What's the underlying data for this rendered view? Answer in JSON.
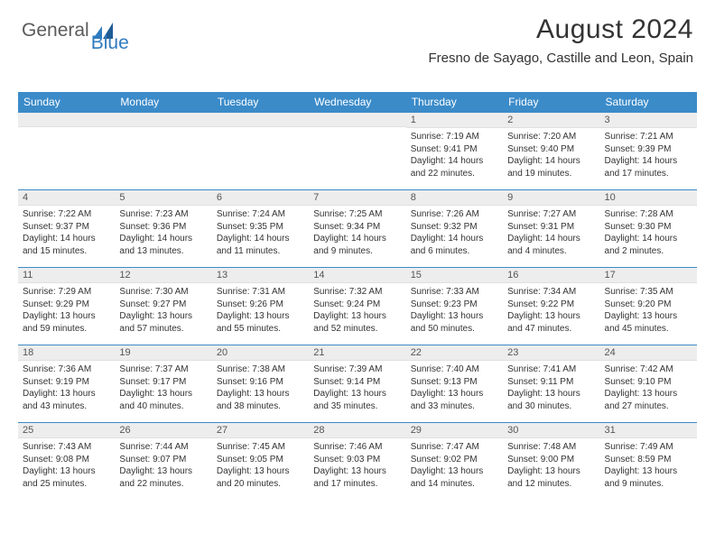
{
  "logo": {
    "text1": "General",
    "text2": "Blue"
  },
  "header": {
    "month": "August 2024",
    "location": "Fresno de Sayago, Castille and Leon, Spain"
  },
  "colors": {
    "header_bg": "#3b8bc9",
    "header_fg": "#ffffff",
    "daynum_bg": "#ededed",
    "border": "#3b8bc9"
  },
  "weekdays": [
    "Sunday",
    "Monday",
    "Tuesday",
    "Wednesday",
    "Thursday",
    "Friday",
    "Saturday"
  ],
  "weeks": [
    [
      null,
      null,
      null,
      null,
      {
        "n": "1",
        "sr": "7:19 AM",
        "ss": "9:41 PM",
        "dl": "14 hours and 22 minutes."
      },
      {
        "n": "2",
        "sr": "7:20 AM",
        "ss": "9:40 PM",
        "dl": "14 hours and 19 minutes."
      },
      {
        "n": "3",
        "sr": "7:21 AM",
        "ss": "9:39 PM",
        "dl": "14 hours and 17 minutes."
      }
    ],
    [
      {
        "n": "4",
        "sr": "7:22 AM",
        "ss": "9:37 PM",
        "dl": "14 hours and 15 minutes."
      },
      {
        "n": "5",
        "sr": "7:23 AM",
        "ss": "9:36 PM",
        "dl": "14 hours and 13 minutes."
      },
      {
        "n": "6",
        "sr": "7:24 AM",
        "ss": "9:35 PM",
        "dl": "14 hours and 11 minutes."
      },
      {
        "n": "7",
        "sr": "7:25 AM",
        "ss": "9:34 PM",
        "dl": "14 hours and 9 minutes."
      },
      {
        "n": "8",
        "sr": "7:26 AM",
        "ss": "9:32 PM",
        "dl": "14 hours and 6 minutes."
      },
      {
        "n": "9",
        "sr": "7:27 AM",
        "ss": "9:31 PM",
        "dl": "14 hours and 4 minutes."
      },
      {
        "n": "10",
        "sr": "7:28 AM",
        "ss": "9:30 PM",
        "dl": "14 hours and 2 minutes."
      }
    ],
    [
      {
        "n": "11",
        "sr": "7:29 AM",
        "ss": "9:29 PM",
        "dl": "13 hours and 59 minutes."
      },
      {
        "n": "12",
        "sr": "7:30 AM",
        "ss": "9:27 PM",
        "dl": "13 hours and 57 minutes."
      },
      {
        "n": "13",
        "sr": "7:31 AM",
        "ss": "9:26 PM",
        "dl": "13 hours and 55 minutes."
      },
      {
        "n": "14",
        "sr": "7:32 AM",
        "ss": "9:24 PM",
        "dl": "13 hours and 52 minutes."
      },
      {
        "n": "15",
        "sr": "7:33 AM",
        "ss": "9:23 PM",
        "dl": "13 hours and 50 minutes."
      },
      {
        "n": "16",
        "sr": "7:34 AM",
        "ss": "9:22 PM",
        "dl": "13 hours and 47 minutes."
      },
      {
        "n": "17",
        "sr": "7:35 AM",
        "ss": "9:20 PM",
        "dl": "13 hours and 45 minutes."
      }
    ],
    [
      {
        "n": "18",
        "sr": "7:36 AM",
        "ss": "9:19 PM",
        "dl": "13 hours and 43 minutes."
      },
      {
        "n": "19",
        "sr": "7:37 AM",
        "ss": "9:17 PM",
        "dl": "13 hours and 40 minutes."
      },
      {
        "n": "20",
        "sr": "7:38 AM",
        "ss": "9:16 PM",
        "dl": "13 hours and 38 minutes."
      },
      {
        "n": "21",
        "sr": "7:39 AM",
        "ss": "9:14 PM",
        "dl": "13 hours and 35 minutes."
      },
      {
        "n": "22",
        "sr": "7:40 AM",
        "ss": "9:13 PM",
        "dl": "13 hours and 33 minutes."
      },
      {
        "n": "23",
        "sr": "7:41 AM",
        "ss": "9:11 PM",
        "dl": "13 hours and 30 minutes."
      },
      {
        "n": "24",
        "sr": "7:42 AM",
        "ss": "9:10 PM",
        "dl": "13 hours and 27 minutes."
      }
    ],
    [
      {
        "n": "25",
        "sr": "7:43 AM",
        "ss": "9:08 PM",
        "dl": "13 hours and 25 minutes."
      },
      {
        "n": "26",
        "sr": "7:44 AM",
        "ss": "9:07 PM",
        "dl": "13 hours and 22 minutes."
      },
      {
        "n": "27",
        "sr": "7:45 AM",
        "ss": "9:05 PM",
        "dl": "13 hours and 20 minutes."
      },
      {
        "n": "28",
        "sr": "7:46 AM",
        "ss": "9:03 PM",
        "dl": "13 hours and 17 minutes."
      },
      {
        "n": "29",
        "sr": "7:47 AM",
        "ss": "9:02 PM",
        "dl": "13 hours and 14 minutes."
      },
      {
        "n": "30",
        "sr": "7:48 AM",
        "ss": "9:00 PM",
        "dl": "13 hours and 12 minutes."
      },
      {
        "n": "31",
        "sr": "7:49 AM",
        "ss": "8:59 PM",
        "dl": "13 hours and 9 minutes."
      }
    ]
  ],
  "labels": {
    "sunrise": "Sunrise:",
    "sunset": "Sunset:",
    "daylight": "Daylight:"
  }
}
